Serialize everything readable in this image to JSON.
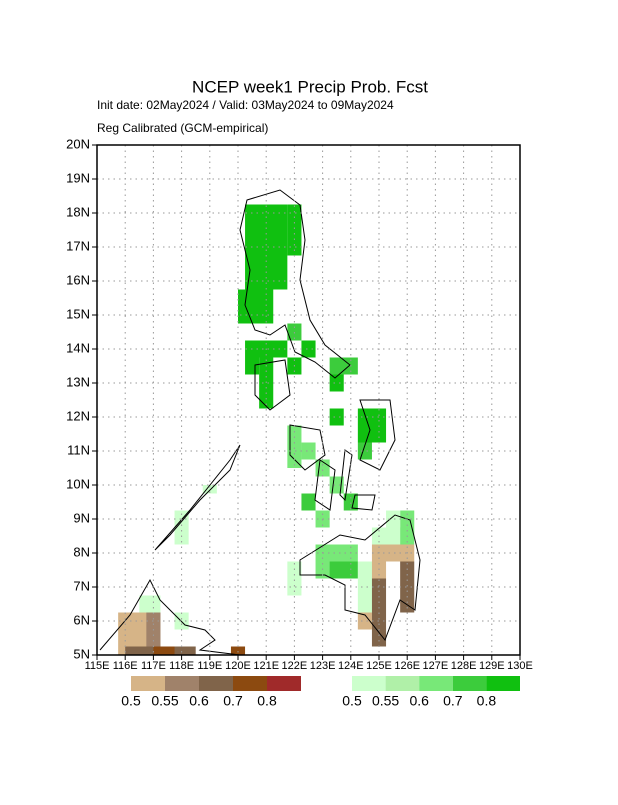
{
  "chart_data": {
    "type": "map",
    "title": "NCEP week1 Precip Prob. Fcst",
    "subtitle": "Init date: 02May2024 / Valid: 03May2024 to 09May2024",
    "subtitle2": "Reg Calibrated (GCM-empirical)",
    "xlim": [
      115,
      130
    ],
    "ylim": [
      5,
      20
    ],
    "xticks": [
      {
        "value": 115,
        "label": "115E"
      },
      {
        "value": 116,
        "label": "116E"
      },
      {
        "value": 117,
        "label": "117E"
      },
      {
        "value": 118,
        "label": "118E"
      },
      {
        "value": 119,
        "label": "119E"
      },
      {
        "value": 120,
        "label": "120E"
      },
      {
        "value": 121,
        "label": "121E"
      },
      {
        "value": 122,
        "label": "122E"
      },
      {
        "value": 123,
        "label": "123E"
      },
      {
        "value": 124,
        "label": "124E"
      },
      {
        "value": 125,
        "label": "125E"
      },
      {
        "value": 126,
        "label": "126E"
      },
      {
        "value": 127,
        "label": "127E"
      },
      {
        "value": 128,
        "label": "128E"
      },
      {
        "value": 129,
        "label": "129E"
      },
      {
        "value": 130,
        "label": "130E"
      }
    ],
    "yticks": [
      {
        "value": 5,
        "label": "5N"
      },
      {
        "value": 6,
        "label": "6N"
      },
      {
        "value": 7,
        "label": "7N"
      },
      {
        "value": 8,
        "label": "8N"
      },
      {
        "value": 9,
        "label": "9N"
      },
      {
        "value": 10,
        "label": "10N"
      },
      {
        "value": 11,
        "label": "11N"
      },
      {
        "value": 12,
        "label": "12N"
      },
      {
        "value": 13,
        "label": "13N"
      },
      {
        "value": 14,
        "label": "14N"
      },
      {
        "value": 15,
        "label": "15N"
      },
      {
        "value": 16,
        "label": "16N"
      },
      {
        "value": 17,
        "label": "17N"
      },
      {
        "value": 18,
        "label": "18N"
      },
      {
        "value": 19,
        "label": "19N"
      },
      {
        "value": 20,
        "label": "20N"
      }
    ],
    "grid": true,
    "dry_legend": {
      "levels": [
        0.5,
        0.55,
        0.6,
        0.7,
        0.8
      ],
      "colors": [
        "#d6b487",
        "#a0826a",
        "#80644a",
        "#8c4a10",
        "#a02a2a"
      ]
    },
    "wet_legend": {
      "levels": [
        0.5,
        0.55,
        0.6,
        0.7,
        0.8
      ],
      "colors": [
        "#ccffcc",
        "#b0f0a8",
        "#78e878",
        "#3ccc3c",
        "#10c010"
      ]
    },
    "wet_cells": [
      {
        "lon": [
          120.25,
          121.75
        ],
        "lat": [
          15.75,
          18.25
        ],
        "p": 0.8
      },
      {
        "lon": [
          121.75,
          122.25
        ],
        "lat": [
          16.75,
          18.25
        ],
        "p": 0.8
      },
      {
        "lon": [
          120.0,
          121.25
        ],
        "lat": [
          14.75,
          15.75
        ],
        "p": 0.8
      },
      {
        "lon": [
          120.25,
          121.75
        ],
        "lat": [
          13.75,
          14.25
        ],
        "p": 0.8
      },
      {
        "lon": [
          120.75,
          121.25
        ],
        "lat": [
          12.25,
          13.75
        ],
        "p": 0.8
      },
      {
        "lon": [
          120.25,
          120.75
        ],
        "lat": [
          13.25,
          13.75
        ],
        "p": 0.8
      },
      {
        "lon": [
          122.25,
          122.75
        ],
        "lat": [
          13.75,
          14.25
        ],
        "p": 0.8
      },
      {
        "lon": [
          121.75,
          122.25
        ],
        "lat": [
          13.25,
          13.75
        ],
        "p": 0.8
      },
      {
        "lon": [
          121.75,
          122.25
        ],
        "lat": [
          14.25,
          14.75
        ],
        "p": 0.7
      },
      {
        "lon": [
          123.25,
          124.25
        ],
        "lat": [
          13.25,
          13.75
        ],
        "p": 0.7
      },
      {
        "lon": [
          123.25,
          123.75
        ],
        "lat": [
          12.75,
          13.25
        ],
        "p": 0.8
      },
      {
        "lon": [
          123.25,
          123.75
        ],
        "lat": [
          11.75,
          12.25
        ],
        "p": 0.8
      },
      {
        "lon": [
          124.25,
          125.25
        ],
        "lat": [
          11.25,
          12.25
        ],
        "p": 0.8
      },
      {
        "lon": [
          124.25,
          124.75
        ],
        "lat": [
          10.75,
          11.25
        ],
        "p": 0.7
      },
      {
        "lon": [
          121.75,
          122.25
        ],
        "lat": [
          10.5,
          11.75
        ],
        "p": 0.6
      },
      {
        "lon": [
          122.25,
          122.75
        ],
        "lat": [
          10.75,
          11.25
        ],
        "p": 0.6
      },
      {
        "lon": [
          122.75,
          123.25
        ],
        "lat": [
          10.25,
          10.75
        ],
        "p": 0.6
      },
      {
        "lon": [
          122.25,
          122.75
        ],
        "lat": [
          9.25,
          9.75
        ],
        "p": 0.7
      },
      {
        "lon": [
          122.75,
          123.25
        ],
        "lat": [
          8.75,
          9.25
        ],
        "p": 0.6
      },
      {
        "lon": [
          123.25,
          123.75
        ],
        "lat": [
          9.75,
          10.25
        ],
        "p": 0.6
      },
      {
        "lon": [
          123.75,
          124.25
        ],
        "lat": [
          9.25,
          9.75
        ],
        "p": 0.7
      },
      {
        "lon": [
          122.75,
          124.25
        ],
        "lat": [
          7.25,
          8.25
        ],
        "p": 0.6
      },
      {
        "lon": [
          123.25,
          124.25
        ],
        "lat": [
          7.25,
          7.75
        ],
        "p": 0.7
      },
      {
        "lon": [
          121.75,
          122.25
        ],
        "lat": [
          6.75,
          7.75
        ],
        "p": 0.5
      },
      {
        "lon": [
          124.25,
          124.75
        ],
        "lat": [
          6.25,
          7.75
        ],
        "p": 0.5
      },
      {
        "lon": [
          124.75,
          125.75
        ],
        "lat": [
          8.25,
          8.75
        ],
        "p": 0.5
      },
      {
        "lon": [
          125.75,
          126.25
        ],
        "lat": [
          8.25,
          9.25
        ],
        "p": 0.6
      },
      {
        "lon": [
          125.25,
          125.75
        ],
        "lat": [
          8.75,
          9.25
        ],
        "p": 0.5
      },
      {
        "lon": [
          117.75,
          118.25
        ],
        "lat": [
          8.25,
          9.25
        ],
        "p": 0.5
      },
      {
        "lon": [
          118.75,
          119.25
        ],
        "lat": [
          9.75,
          10.0
        ],
        "p": 0.5
      },
      {
        "lon": [
          116.5,
          117.25
        ],
        "lat": [
          6.25,
          6.75
        ],
        "p": 0.5
      },
      {
        "lon": [
          117.75,
          118.25
        ],
        "lat": [
          5.75,
          6.25
        ],
        "p": 0.5
      }
    ],
    "dry_cells": [
      {
        "lon": [
          124.75,
          126.25
        ],
        "lat": [
          7.75,
          8.25
        ],
        "p": 0.5
      },
      {
        "lon": [
          124.75,
          125.25
        ],
        "lat": [
          7.25,
          7.75
        ],
        "p": 0.5
      },
      {
        "lon": [
          124.25,
          124.75
        ],
        "lat": [
          5.75,
          6.25
        ],
        "p": 0.5
      },
      {
        "lon": [
          124.75,
          125.25
        ],
        "lat": [
          5.25,
          7.25
        ],
        "p": 0.6
      },
      {
        "lon": [
          125.75,
          126.25
        ],
        "lat": [
          6.25,
          7.75
        ],
        "p": 0.6
      },
      {
        "lon": [
          115.75,
          117.25
        ],
        "lat": [
          5.0,
          6.25
        ],
        "p": 0.5
      },
      {
        "lon": [
          116.75,
          117.25
        ],
        "lat": [
          5.25,
          6.25
        ],
        "p": 0.55
      },
      {
        "lon": [
          116.0,
          118.5
        ],
        "lat": [
          5.0,
          5.25
        ],
        "p": 0.6
      },
      {
        "lon": [
          117.0,
          117.75
        ],
        "lat": [
          5.0,
          5.25
        ],
        "p": 0.7
      },
      {
        "lon": [
          119.75,
          120.25
        ],
        "lat": [
          5.0,
          5.25
        ],
        "p": 0.7
      }
    ]
  }
}
